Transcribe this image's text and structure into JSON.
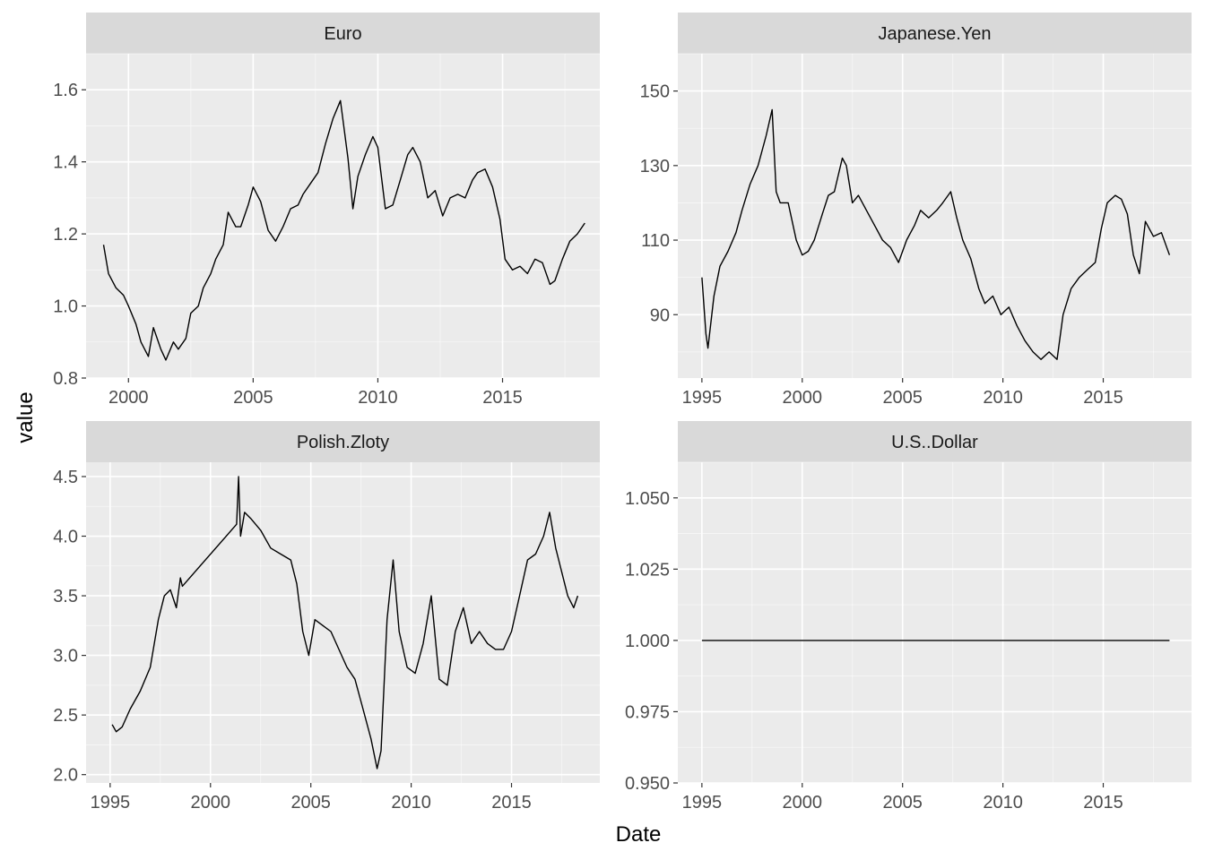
{
  "xlabel": "Date",
  "ylabel": "value",
  "colors": {
    "panel_bg": "#ebebeb",
    "strip_bg": "#d9d9d9",
    "grid": "#ffffff",
    "line": "#000000",
    "tick": "#333333"
  },
  "chart_data": [
    {
      "type": "line",
      "title": "Euro",
      "grid": true,
      "xlim": [
        1998.3,
        2018.9
      ],
      "ylim": [
        0.8,
        1.7
      ],
      "xticks": [
        2000,
        2005,
        2010,
        2015
      ],
      "xtick_labels": [
        "2000",
        "2005",
        "2010",
        "2015"
      ],
      "yticks": [
        0.8,
        1.0,
        1.2,
        1.4,
        1.6
      ],
      "ytick_labels": [
        "0.8",
        "1.0",
        "1.2",
        "1.4",
        "1.6"
      ],
      "series": [
        {
          "x": [
            1999.0,
            1999.2,
            1999.5,
            1999.8,
            2000.0,
            2000.3,
            2000.5,
            2000.8,
            2001.0,
            2001.3,
            2001.5,
            2001.8,
            2002.0,
            2002.3,
            2002.5,
            2002.8,
            2003.0,
            2003.3,
            2003.5,
            2003.8,
            2004.0,
            2004.3,
            2004.5,
            2004.8,
            2005.0,
            2005.3,
            2005.6,
            2005.9,
            2006.2,
            2006.5,
            2006.8,
            2007.0,
            2007.3,
            2007.6,
            2007.9,
            2008.2,
            2008.5,
            2008.8,
            2009.0,
            2009.2,
            2009.5,
            2009.8,
            2010.0,
            2010.3,
            2010.6,
            2010.9,
            2011.2,
            2011.4,
            2011.7,
            2012.0,
            2012.3,
            2012.6,
            2012.9,
            2013.2,
            2013.5,
            2013.8,
            2014.0,
            2014.3,
            2014.6,
            2014.9,
            2015.1,
            2015.4,
            2015.7,
            2016.0,
            2016.3,
            2016.6,
            2016.9,
            2017.1,
            2017.4,
            2017.7,
            2018.0,
            2018.3
          ],
          "y": [
            1.17,
            1.09,
            1.05,
            1.03,
            1.0,
            0.95,
            0.9,
            0.86,
            0.94,
            0.88,
            0.85,
            0.9,
            0.88,
            0.91,
            0.98,
            1.0,
            1.05,
            1.09,
            1.13,
            1.17,
            1.26,
            1.22,
            1.22,
            1.28,
            1.33,
            1.29,
            1.21,
            1.18,
            1.22,
            1.27,
            1.28,
            1.31,
            1.34,
            1.37,
            1.45,
            1.52,
            1.57,
            1.41,
            1.27,
            1.36,
            1.42,
            1.47,
            1.44,
            1.27,
            1.28,
            1.35,
            1.42,
            1.44,
            1.4,
            1.3,
            1.32,
            1.25,
            1.3,
            1.31,
            1.3,
            1.35,
            1.37,
            1.38,
            1.33,
            1.24,
            1.13,
            1.1,
            1.11,
            1.09,
            1.13,
            1.12,
            1.06,
            1.07,
            1.13,
            1.18,
            1.2,
            1.23
          ]
        }
      ]
    },
    {
      "type": "line",
      "title": "Japanese.Yen",
      "grid": true,
      "xlim": [
        1993.8,
        2019.4
      ],
      "ylim": [
        73,
        160
      ],
      "xticks": [
        1995,
        2000,
        2005,
        2010,
        2015
      ],
      "xtick_labels": [
        "1995",
        "2000",
        "2005",
        "2010",
        "2015"
      ],
      "yticks": [
        90,
        110,
        130,
        150
      ],
      "ytick_labels": [
        "90",
        "110",
        "130",
        "150"
      ],
      "series": [
        {
          "x": [
            1995.0,
            1995.2,
            1995.3,
            1995.6,
            1995.9,
            1996.3,
            1996.7,
            1997.0,
            1997.4,
            1997.8,
            1998.2,
            1998.5,
            1998.7,
            1998.9,
            1999.3,
            1999.7,
            2000.0,
            2000.3,
            2000.6,
            2001.0,
            2001.3,
            2001.6,
            2002.0,
            2002.2,
            2002.5,
            2002.8,
            2003.2,
            2003.6,
            2004.0,
            2004.4,
            2004.8,
            2005.2,
            2005.6,
            2005.9,
            2006.3,
            2006.7,
            2007.0,
            2007.4,
            2007.7,
            2008.0,
            2008.4,
            2008.8,
            2009.1,
            2009.5,
            2009.9,
            2010.3,
            2010.7,
            2011.1,
            2011.5,
            2011.9,
            2012.3,
            2012.7,
            2013.0,
            2013.4,
            2013.8,
            2014.2,
            2014.6,
            2014.9,
            2015.2,
            2015.6,
            2015.9,
            2016.2,
            2016.5,
            2016.8,
            2017.1,
            2017.5,
            2017.9,
            2018.3
          ],
          "y": [
            100,
            85,
            81,
            95,
            103,
            107,
            112,
            118,
            125,
            130,
            138,
            145,
            123,
            120,
            120,
            110,
            106,
            107,
            110,
            117,
            122,
            123,
            132,
            130,
            120,
            122,
            118,
            114,
            110,
            108,
            104,
            110,
            114,
            118,
            116,
            118,
            120,
            123,
            116,
            110,
            105,
            97,
            93,
            95,
            90,
            92,
            87,
            83,
            80,
            78,
            80,
            78,
            90,
            97,
            100,
            102,
            104,
            113,
            120,
            122,
            121,
            117,
            106,
            101,
            115,
            111,
            112,
            106
          ]
        }
      ]
    },
    {
      "type": "line",
      "title": "Polish.Zloty",
      "grid": true,
      "xlim": [
        1993.8,
        2019.4
      ],
      "ylim": [
        1.93,
        4.62
      ],
      "xticks": [
        1995,
        2000,
        2005,
        2010,
        2015
      ],
      "xtick_labels": [
        "1995",
        "2000",
        "2005",
        "2010",
        "2015"
      ],
      "yticks": [
        2.0,
        2.5,
        3.0,
        3.5,
        4.0,
        4.5
      ],
      "ytick_labels": [
        "2.0",
        "2.5",
        "3.0",
        "3.5",
        "4.0",
        "4.5"
      ],
      "series": [
        {
          "x": [
            1995.1,
            1995.3,
            1995.6,
            1996.0,
            1996.5,
            1997.0,
            1997.4,
            1997.7,
            1998.0,
            1998.3,
            1998.5,
            1998.6,
            2001.3,
            2001.4,
            2001.5,
            2001.7,
            2002.0,
            2002.5,
            2003.0,
            2003.5,
            2004.0,
            2004.3,
            2004.6,
            2004.9,
            2005.2,
            2005.6,
            2006.0,
            2006.4,
            2006.8,
            2007.2,
            2007.6,
            2008.0,
            2008.3,
            2008.5,
            2008.8,
            2009.1,
            2009.4,
            2009.8,
            2010.2,
            2010.6,
            2011.0,
            2011.4,
            2011.8,
            2012.2,
            2012.6,
            2013.0,
            2013.4,
            2013.8,
            2014.2,
            2014.6,
            2015.0,
            2015.4,
            2015.8,
            2016.2,
            2016.6,
            2016.9,
            2017.2,
            2017.5,
            2017.8,
            2018.1,
            2018.3
          ],
          "y": [
            2.42,
            2.36,
            2.4,
            2.55,
            2.7,
            2.9,
            3.3,
            3.5,
            3.55,
            3.4,
            3.65,
            3.58,
            4.1,
            4.5,
            4.0,
            4.2,
            4.15,
            4.05,
            3.9,
            3.85,
            3.8,
            3.6,
            3.2,
            3.0,
            3.3,
            3.25,
            3.2,
            3.05,
            2.9,
            2.8,
            2.55,
            2.3,
            2.05,
            2.2,
            3.3,
            3.8,
            3.2,
            2.9,
            2.85,
            3.1,
            3.5,
            2.8,
            2.75,
            3.2,
            3.4,
            3.1,
            3.2,
            3.1,
            3.05,
            3.05,
            3.2,
            3.5,
            3.8,
            3.85,
            4.0,
            4.2,
            3.9,
            3.7,
            3.5,
            3.4,
            3.5
          ]
        }
      ]
    },
    {
      "type": "line",
      "title": "U.S..Dollar",
      "grid": true,
      "xlim": [
        1993.8,
        2019.4
      ],
      "ylim": [
        0.95,
        1.0625
      ],
      "xticks": [
        1995,
        2000,
        2005,
        2010,
        2015
      ],
      "xtick_labels": [
        "1995",
        "2000",
        "2005",
        "2010",
        "2015"
      ],
      "yticks": [
        0.95,
        0.975,
        1.0,
        1.025,
        1.05
      ],
      "ytick_labels": [
        "0.950",
        "0.975",
        "1.000",
        "1.025",
        "1.050"
      ],
      "series": [
        {
          "x": [
            1995.0,
            2018.3
          ],
          "y": [
            1.0,
            1.0
          ]
        }
      ]
    }
  ]
}
